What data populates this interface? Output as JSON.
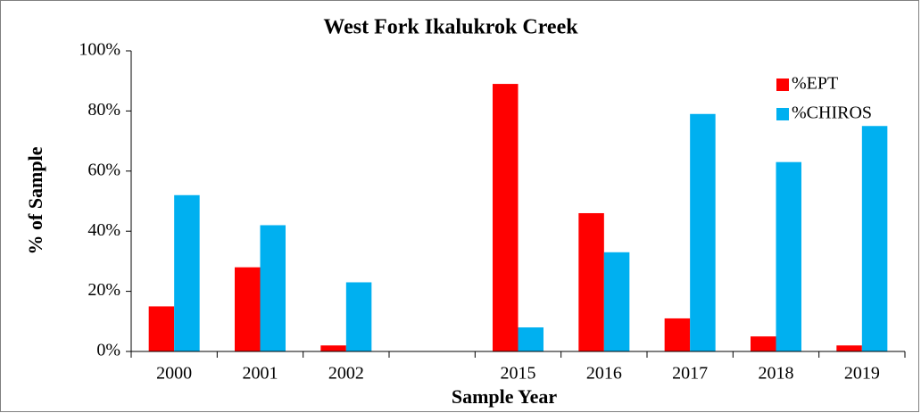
{
  "chart_data": {
    "type": "bar",
    "title": "West Fork Ikalukrok Creek",
    "xlabel": "Sample Year",
    "ylabel": "% of Sample",
    "categories": [
      "2000",
      "2001",
      "2002",
      null,
      "2015",
      "2016",
      "2017",
      "2018",
      "2019"
    ],
    "series": [
      {
        "name": "%EPT",
        "color": "#ff0000",
        "values": [
          15,
          28,
          2,
          null,
          89,
          46,
          11,
          5,
          2
        ]
      },
      {
        "name": "%CHIROS",
        "color": "#00b0f0",
        "values": [
          52,
          42,
          23,
          null,
          8,
          33,
          79,
          63,
          75
        ]
      }
    ],
    "ylim": [
      0,
      100
    ],
    "yticks": [
      {
        "value": 0,
        "label": "0%"
      },
      {
        "value": 20,
        "label": "20%"
      },
      {
        "value": 40,
        "label": "40%"
      },
      {
        "value": 60,
        "label": "60%"
      },
      {
        "value": 80,
        "label": "80%"
      },
      {
        "value": 100,
        "label": "100%"
      }
    ],
    "legend": "upper right",
    "grid": false
  }
}
